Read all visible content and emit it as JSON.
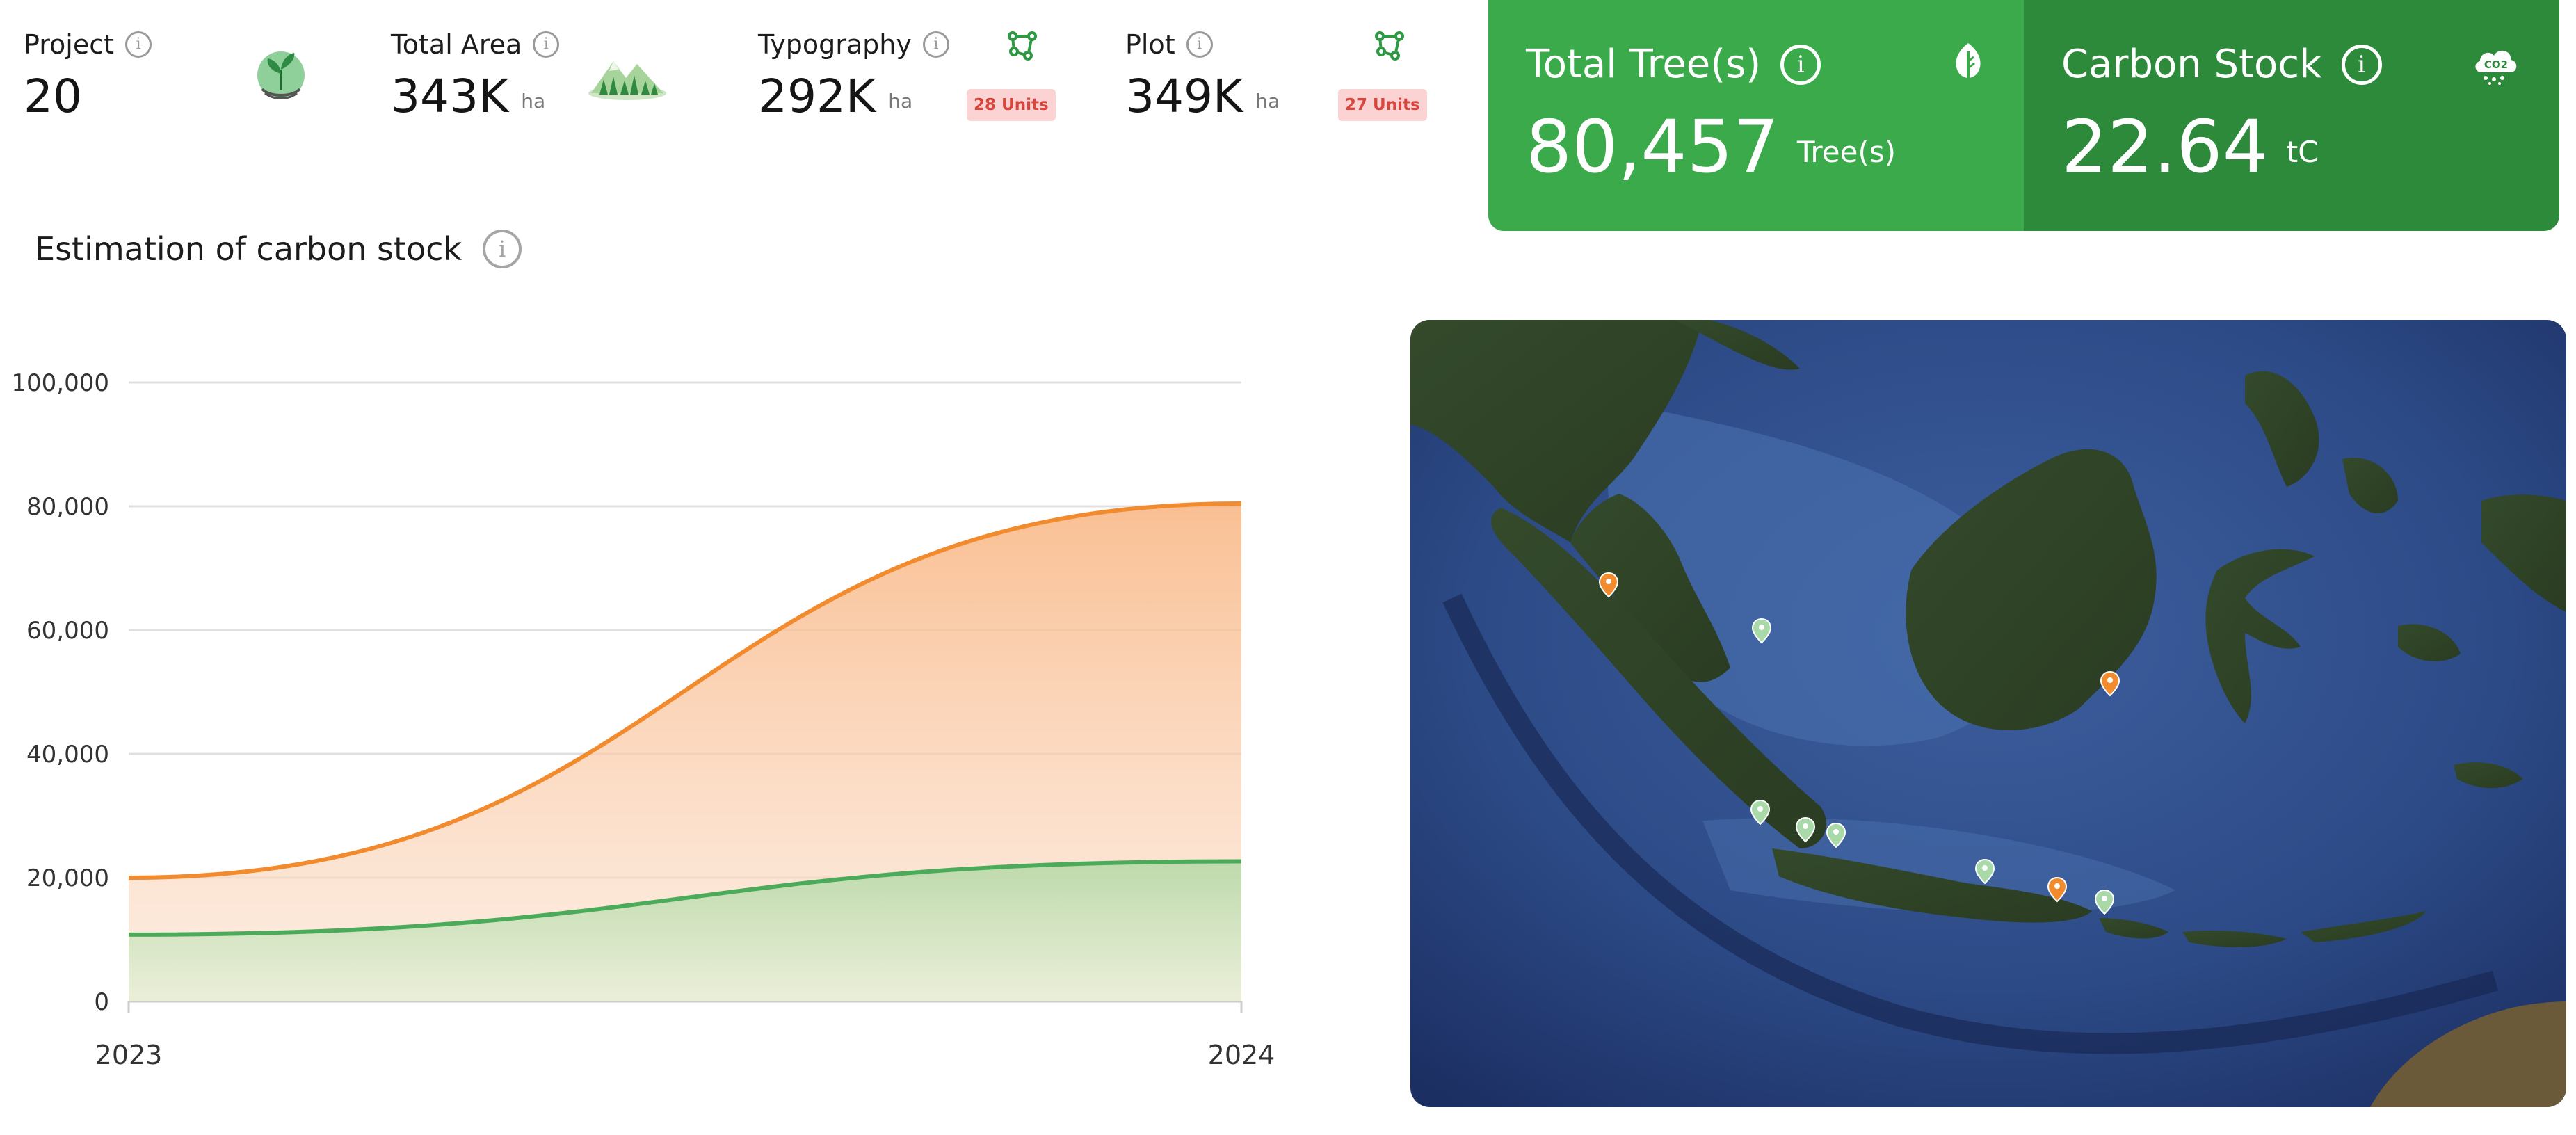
{
  "stats": [
    {
      "label": "Project",
      "value": "20",
      "unit": "",
      "icon": "seedling-hands-icon"
    },
    {
      "label": "Total Area",
      "value": "343K",
      "unit": "ha",
      "icon": "forest-hill-icon"
    },
    {
      "label": "Typography",
      "value": "292K",
      "unit": "ha",
      "icon": "polygon-nodes-icon",
      "badge": "28 Units"
    },
    {
      "label": "Plot",
      "value": "349K",
      "unit": "ha",
      "icon": "polygon-nodes-icon",
      "badge": "27 Units"
    }
  ],
  "totals": {
    "trees": {
      "label": "Total Tree(s)",
      "value": "80,457",
      "unit": "Tree(s)",
      "icon": "leaf-icon"
    },
    "carbon": {
      "label": "Carbon Stock",
      "value": "22.64",
      "unit": "tC",
      "icon": "co2-cloud-icon",
      "icon_text": "CO2"
    }
  },
  "chart_title": "Estimation of carbon stock",
  "colors": {
    "green_primary": "#3aaa4a",
    "green_dark": "#2d8a3b",
    "orange": "#f28a2e",
    "badge_bg": "#fbd3d3",
    "badge_text": "#d8453d"
  },
  "chart_data": {
    "type": "area",
    "x": [
      "2023",
      "2024"
    ],
    "yticks": [
      "0",
      "20,000",
      "40,000",
      "60,000",
      "80,000",
      "100,000"
    ],
    "ylim": [
      0,
      100000
    ],
    "grid": true,
    "series": [
      {
        "values": [
          20000,
          80457
        ],
        "color": "#f28a2e"
      },
      {
        "values": [
          10800,
          22640
        ],
        "color": "#4cab5a"
      }
    ]
  },
  "map": {
    "type": "satellite",
    "markers": [
      {
        "lat": 3.6,
        "lon": 98.7,
        "color": "orange"
      },
      {
        "lat": 1.1,
        "lon": 104.0,
        "color": "green"
      },
      {
        "lat": -0.5,
        "lon": 117.1,
        "color": "orange"
      },
      {
        "lat": -5.4,
        "lon": 105.3,
        "color": "green"
      },
      {
        "lat": -6.2,
        "lon": 106.8,
        "color": "green"
      },
      {
        "lat": -6.6,
        "lon": 107.6,
        "color": "green"
      },
      {
        "lat": -7.3,
        "lon": 112.7,
        "color": "green"
      },
      {
        "lat": -8.1,
        "lon": 114.4,
        "color": "orange"
      },
      {
        "lat": -8.6,
        "lon": 116.1,
        "color": "green"
      }
    ]
  }
}
